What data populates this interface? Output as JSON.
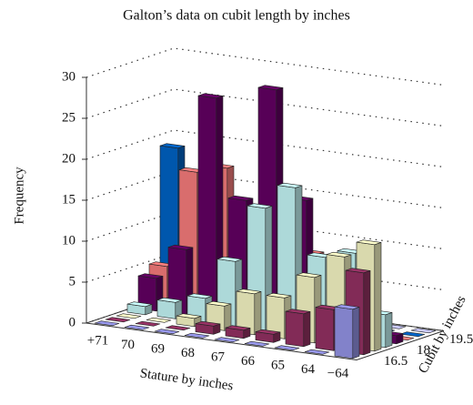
{
  "chart_data": {
    "type": "bar3d",
    "title": "Galton’s data on cubit length by inches",
    "x_label": "Stature by inches",
    "y_label": "Cubit by inches",
    "z_label": "Frequency",
    "categories": [
      "+71",
      "70",
      "69",
      "68",
      "67",
      "66",
      "65",
      "64",
      "−64"
    ],
    "depth_categories": [
      null,
      "16.5",
      null,
      null,
      "18",
      null,
      null,
      "19.5"
    ],
    "series": [
      {
        "color": "#9999ee",
        "values": [
          0,
          0,
          0,
          0,
          0,
          0,
          0,
          0,
          6
        ]
      },
      {
        "color": "#993366",
        "values": [
          0,
          0,
          0,
          1,
          1,
          1,
          4,
          5,
          10
        ]
      },
      {
        "color": "#ffffcc",
        "values": [
          0,
          0,
          1,
          3,
          5,
          5,
          8,
          11,
          13
        ]
      },
      {
        "color": "#ccffff",
        "values": [
          1,
          2,
          3,
          8,
          15,
          18,
          10,
          11,
          4
        ]
      },
      {
        "color": "#660066",
        "values": [
          4,
          8,
          27,
          15,
          29,
          16,
          9,
          4,
          1
        ]
      },
      {
        "color": "#ff8080",
        "values": [
          5,
          17,
          18,
          12,
          10,
          9,
          4,
          1,
          0
        ]
      },
      {
        "color": "#0066cc",
        "values": [
          19,
          8,
          4,
          2,
          1,
          0,
          0,
          0,
          0
        ]
      },
      {
        "color": "#ccccff",
        "values": [
          0,
          0,
          0,
          0,
          0,
          0,
          0,
          0,
          0
        ]
      }
    ],
    "zlim": [
      0,
      30
    ],
    "zticks": [
      0,
      5,
      10,
      15,
      20,
      25,
      30
    ],
    "grid": true
  }
}
